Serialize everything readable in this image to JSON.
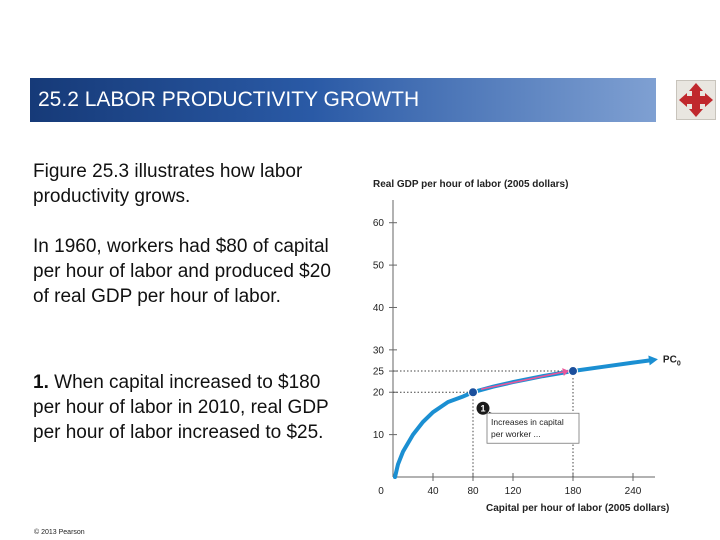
{
  "header": {
    "title": "25.2  LABOR PRODUCTIVITY GROWTH",
    "nav_icon": "four-way-arrows-icon",
    "accent_color": "#c0282d"
  },
  "body_text": {
    "p1": "Figure 25.3 illustrates how labor productivity grows.",
    "p2": "In 1960, workers had $80 of capital per hour of labor and produced $20 of real GDP per hour of labor.",
    "p3_num": "1.",
    "p3_rest": " When capital increased to $180 per hour of labor in 2010, real GDP per hour of labor increased to $25."
  },
  "footer": {
    "copyright": "© 2013 Pearson"
  },
  "chart_data": {
    "type": "line",
    "ylabel": "Real GDP per hour of labor (2005 dollars)",
    "xlabel": "Capital per hour of labor (2005 dollars)",
    "x_ticks": [
      0,
      40,
      80,
      120,
      180,
      240
    ],
    "y_ticks": [
      10,
      20,
      25,
      30,
      40,
      50,
      60
    ],
    "xlim": [
      0,
      250
    ],
    "ylim": [
      0,
      63
    ],
    "series": [
      {
        "name": "PC",
        "name_sub": "0",
        "color": "#1b8fd2",
        "points": [
          [
            2,
            0
          ],
          [
            5,
            3
          ],
          [
            10,
            6
          ],
          [
            20,
            10
          ],
          [
            30,
            13
          ],
          [
            40,
            15.3
          ],
          [
            55,
            17.7
          ],
          [
            70,
            19
          ],
          [
            80,
            20
          ],
          [
            100,
            21.3
          ],
          [
            120,
            22.4
          ],
          [
            150,
            23.8
          ],
          [
            180,
            25
          ],
          [
            210,
            26
          ],
          [
            240,
            27
          ],
          [
            256,
            27.5
          ]
        ]
      }
    ],
    "highlighted_points": [
      {
        "x": 80,
        "y": 20
      },
      {
        "x": 180,
        "y": 25
      }
    ],
    "annotation": {
      "number": "1",
      "text_line1": "Increases in capital",
      "text_line2": "per worker ..."
    }
  }
}
